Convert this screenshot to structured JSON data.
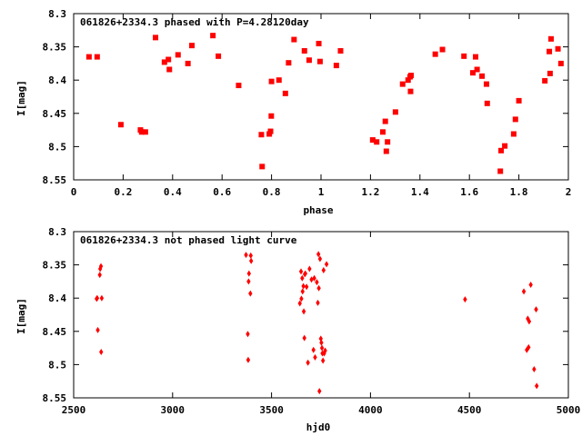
{
  "chart_data": [
    {
      "type": "scatter",
      "title": "061826+2334.3 phased with P=4.28120day",
      "xlabel": "phase",
      "ylabel": "I[mag]",
      "xlim": [
        0,
        2
      ],
      "ylim": [
        8.55,
        8.3
      ],
      "y_inverted": true,
      "grid": false,
      "marker_color": "#ff0000",
      "xticks": [
        "0",
        "0.2",
        "0.4",
        "0.6",
        "0.8",
        "1",
        "1.2",
        "1.4",
        "1.6",
        "1.8",
        "2"
      ],
      "yticks": [
        "8.3",
        "8.35",
        "8.4",
        "8.45",
        "8.5",
        "8.55"
      ],
      "series": [
        {
          "points": [
            [
              0.062,
              8.365
            ],
            [
              0.095,
              8.365
            ],
            [
              0.191,
              8.467
            ],
            [
              0.27,
              8.475
            ],
            [
              0.275,
              8.478
            ],
            [
              0.29,
              8.478
            ],
            [
              0.331,
              8.336
            ],
            [
              0.367,
              8.373
            ],
            [
              0.383,
              8.369
            ],
            [
              0.387,
              8.384
            ],
            [
              0.422,
              8.362
            ],
            [
              0.462,
              8.375
            ],
            [
              0.478,
              8.348
            ],
            [
              0.563,
              8.333
            ],
            [
              0.585,
              8.364
            ],
            [
              0.667,
              8.408
            ],
            [
              0.759,
              8.482
            ],
            [
              0.762,
              8.53
            ],
            [
              0.791,
              8.481
            ],
            [
              0.796,
              8.477
            ],
            [
              0.799,
              8.454
            ],
            [
              0.8,
              8.402
            ],
            [
              0.83,
              8.4
            ],
            [
              0.856,
              8.42
            ],
            [
              0.869,
              8.374
            ],
            [
              0.891,
              8.339
            ],
            [
              0.933,
              8.356
            ],
            [
              0.952,
              8.37
            ],
            [
              0.991,
              8.345
            ],
            [
              0.996,
              8.372
            ],
            [
              1.062,
              8.378
            ],
            [
              1.079,
              8.356
            ],
            [
              1.209,
              8.49
            ],
            [
              1.225,
              8.493
            ],
            [
              1.25,
              8.478
            ],
            [
              1.26,
              8.462
            ],
            [
              1.264,
              8.507
            ],
            [
              1.269,
              8.493
            ],
            [
              1.301,
              8.448
            ],
            [
              1.33,
              8.406
            ],
            [
              1.352,
              8.4
            ],
            [
              1.36,
              8.395
            ],
            [
              1.362,
              8.417
            ],
            [
              1.364,
              8.393
            ],
            [
              1.462,
              8.361
            ],
            [
              1.491,
              8.354
            ],
            [
              1.578,
              8.364
            ],
            [
              1.614,
              8.389
            ],
            [
              1.625,
              8.365
            ],
            [
              1.631,
              8.384
            ],
            [
              1.651,
              8.394
            ],
            [
              1.669,
              8.406
            ],
            [
              1.672,
              8.435
            ],
            [
              1.725,
              8.537
            ],
            [
              1.728,
              8.506
            ],
            [
              1.743,
              8.499
            ],
            [
              1.779,
              8.481
            ],
            [
              1.786,
              8.459
            ],
            [
              1.8,
              8.431
            ],
            [
              1.905,
              8.401
            ],
            [
              1.923,
              8.357
            ],
            [
              1.926,
              8.39
            ],
            [
              1.93,
              8.338
            ],
            [
              1.958,
              8.353
            ],
            [
              1.97,
              8.375
            ]
          ]
        }
      ]
    },
    {
      "type": "scatter",
      "title": "061826+2334.3 not phased light curve",
      "xlabel": "hjd0",
      "ylabel": "I[mag]",
      "xlim": [
        2500,
        5000
      ],
      "ylim": [
        8.55,
        8.3
      ],
      "y_inverted": true,
      "grid": false,
      "marker_color": "#ff0000",
      "xticks": [
        "2500",
        "3000",
        "3500",
        "4000",
        "4500",
        "5000"
      ],
      "yticks": [
        "8.3",
        "8.35",
        "8.4",
        "8.45",
        "8.5",
        "8.55"
      ],
      "series": [
        {
          "points": [
            [
              2616,
              8.401
            ],
            [
              2619,
              8.4
            ],
            [
              2622,
              8.448
            ],
            [
              2632,
              8.365
            ],
            [
              2634,
              8.356
            ],
            [
              2638,
              8.352
            ],
            [
              2639,
              8.481
            ],
            [
              2642,
              8.4
            ],
            [
              3371,
              8.335
            ],
            [
              3380,
              8.454
            ],
            [
              3382,
              8.493
            ],
            [
              3384,
              8.375
            ],
            [
              3386,
              8.363
            ],
            [
              3393,
              8.393
            ],
            [
              3395,
              8.336
            ],
            [
              3397,
              8.344
            ],
            [
              3643,
              8.408
            ],
            [
              3649,
              8.36
            ],
            [
              3651,
              8.401
            ],
            [
              3655,
              8.37
            ],
            [
              3657,
              8.39
            ],
            [
              3661,
              8.382
            ],
            [
              3663,
              8.42
            ],
            [
              3666,
              8.46
            ],
            [
              3668,
              8.364
            ],
            [
              3671,
              8.363
            ],
            [
              3677,
              8.383
            ],
            [
              3684,
              8.497
            ],
            [
              3692,
              8.356
            ],
            [
              3702,
              8.372
            ],
            [
              3712,
              8.478
            ],
            [
              3716,
              8.37
            ],
            [
              3720,
              8.489
            ],
            [
              3729,
              8.376
            ],
            [
              3734,
              8.407
            ],
            [
              3737,
              8.334
            ],
            [
              3739,
              8.385
            ],
            [
              3742,
              8.54
            ],
            [
              3745,
              8.341
            ],
            [
              3749,
              8.461
            ],
            [
              3752,
              8.467
            ],
            [
              3755,
              8.475
            ],
            [
              3757,
              8.483
            ],
            [
              3760,
              8.494
            ],
            [
              3763,
              8.358
            ],
            [
              3766,
              8.483
            ],
            [
              3771,
              8.479
            ],
            [
              3778,
              8.349
            ],
            [
              4478,
              8.402
            ],
            [
              4775,
              8.39
            ],
            [
              4790,
              8.478
            ],
            [
              4795,
              8.431
            ],
            [
              4799,
              8.474
            ],
            [
              4802,
              8.435
            ],
            [
              4810,
              8.38
            ],
            [
              4827,
              8.507
            ],
            [
              4837,
              8.417
            ],
            [
              4840,
              8.532
            ]
          ]
        }
      ]
    }
  ]
}
